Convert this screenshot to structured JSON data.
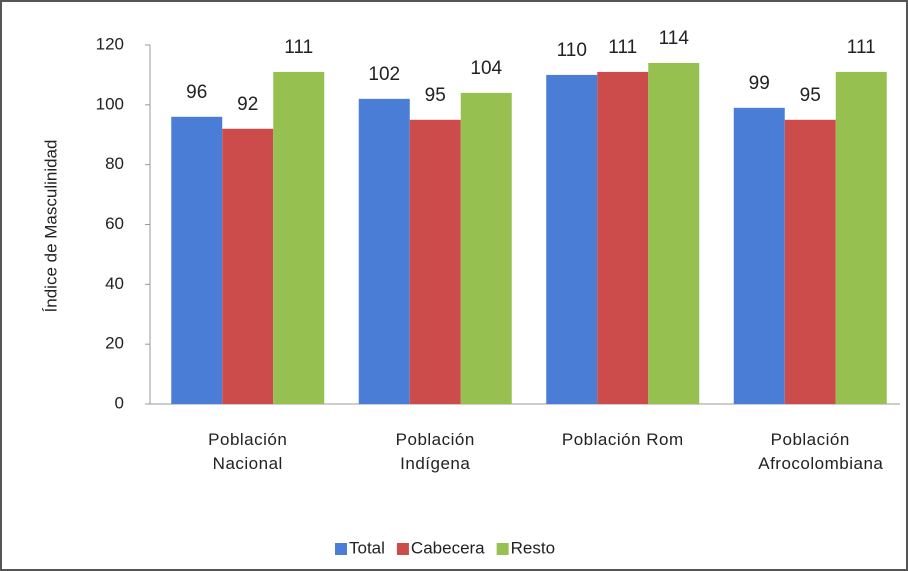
{
  "chart_data": {
    "type": "bar",
    "y_label": "Índice de Masculinidad",
    "categories": [
      "Población Nacional",
      "Población Indígena",
      "Población Rom",
      "Población Afrocolombiana"
    ],
    "series": [
      {
        "name": "Total",
        "color": "#4a7ed6",
        "values": [
          96,
          102,
          110,
          99
        ]
      },
      {
        "name": "Cabecera",
        "color": "#cc4b4b",
        "values": [
          92,
          95,
          111,
          95
        ]
      },
      {
        "name": "Resto",
        "color": "#96c050",
        "values": [
          111,
          104,
          114,
          111
        ]
      }
    ],
    "ylim": [
      0,
      120
    ],
    "yticks": [
      0,
      20,
      40,
      60,
      80,
      100,
      120
    ],
    "grid": false,
    "legend": "bottom"
  }
}
